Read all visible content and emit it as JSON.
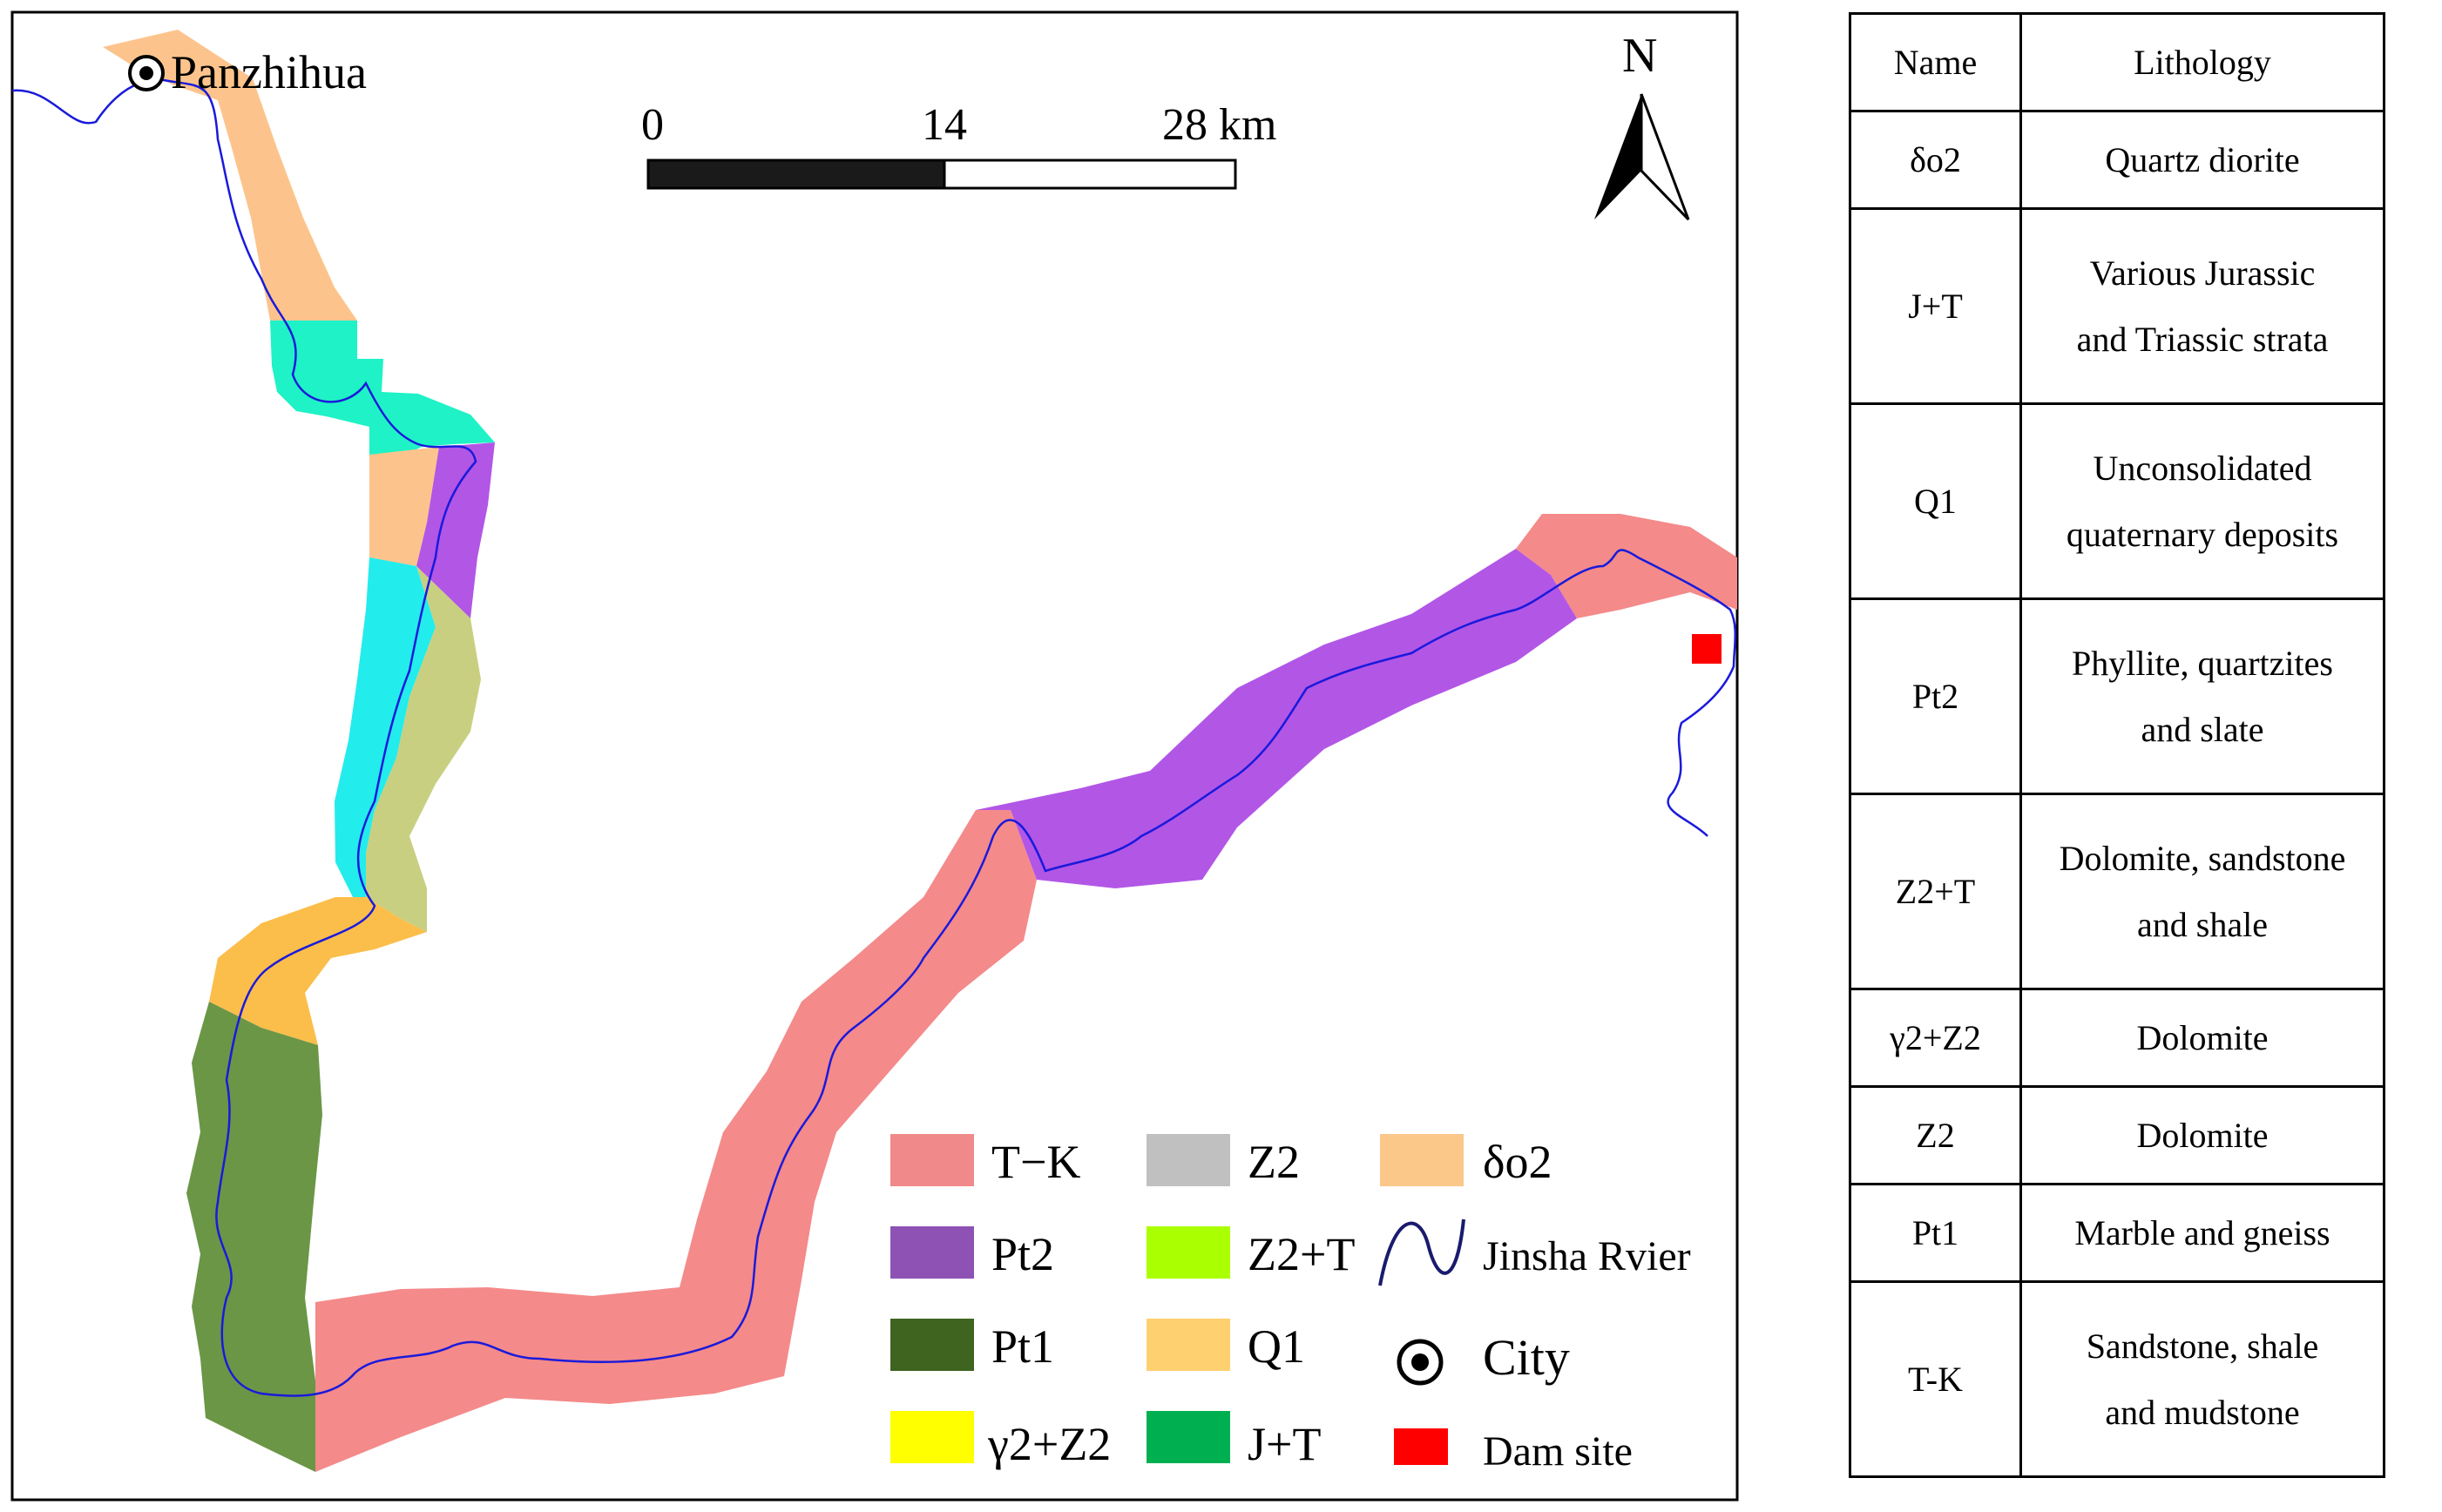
{
  "map": {
    "city": "Panzhihua",
    "north_label": "N",
    "scale": {
      "ticks": [
        "0",
        "14",
        "28 km"
      ]
    },
    "river_color": "#1a1adb",
    "dam_color": "#ff0000",
    "legend": [
      {
        "label": "T−K",
        "color": "#f08a8a"
      },
      {
        "label": "Z2",
        "color": "#c0c0c0"
      },
      {
        "label": "δo2",
        "color": "#fbc88a"
      },
      {
        "label": "Pt2",
        "color": "#8e52b5"
      },
      {
        "label": "Z2+T",
        "color": "#aaff00"
      },
      {
        "label": "Jinsha Rvier",
        "icon": "river-line-icon"
      },
      {
        "label": "Pt1",
        "color": "#3e6420"
      },
      {
        "label": "Q1",
        "color": "#ffd070"
      },
      {
        "label": "City",
        "icon": "city-dot-icon"
      },
      {
        "label": "γ2+Z2",
        "color": "#ffff00"
      },
      {
        "label": "J+T",
        "color": "#00b050"
      },
      {
        "label": "Dam site",
        "color": "#ff0000"
      }
    ],
    "unit_colors": {
      "T-K": "#f48a8a",
      "Pt2": "#b256e6",
      "Pt1": "#6b9646",
      "Q1": "#fbbe4a",
      "delta_o2": "#fcc48c",
      "J+T": "#1ff2c6",
      "cyan": "#22ecec",
      "olive": "#c9cf80"
    }
  },
  "table": {
    "headers": [
      "Name",
      "Lithology"
    ],
    "rows": [
      {
        "name": "δo2",
        "lithology": [
          "Quartz diorite"
        ]
      },
      {
        "name": "J+T",
        "lithology": [
          "Various Jurassic",
          "and Triassic strata"
        ]
      },
      {
        "name": "Q1",
        "lithology": [
          "Unconsolidated",
          "quaternary deposits"
        ]
      },
      {
        "name": "Pt2",
        "lithology": [
          "Phyllite, quartzites",
          "and slate"
        ]
      },
      {
        "name": "Z2+T",
        "lithology": [
          "Dolomite, sandstone",
          "and shale"
        ]
      },
      {
        "name": "γ2+Z2",
        "lithology": [
          "Dolomite"
        ]
      },
      {
        "name": "Z2",
        "lithology": [
          "Dolomite"
        ]
      },
      {
        "name": "Pt1",
        "lithology": [
          "Marble and gneiss"
        ]
      },
      {
        "name": "T-K",
        "lithology": [
          "Sandstone, shale",
          "and mudstone"
        ]
      }
    ]
  }
}
